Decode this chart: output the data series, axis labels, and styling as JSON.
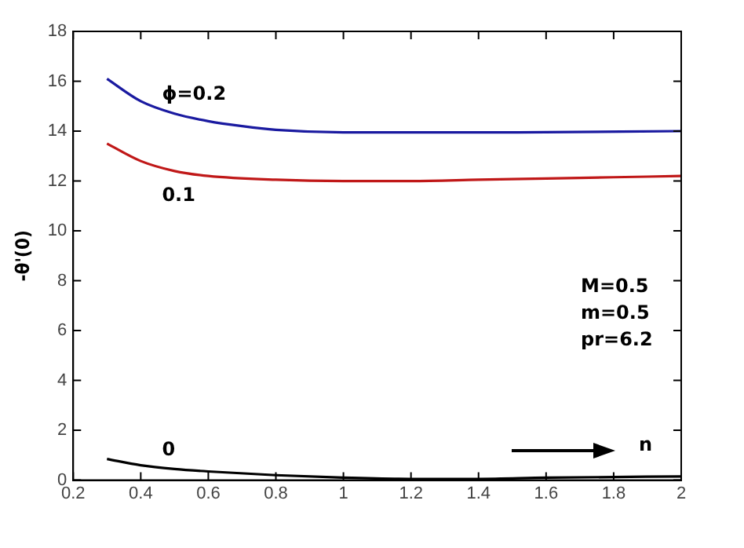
{
  "chart_data": {
    "type": "line",
    "ylabel": "-θ'(0)",
    "xlim": [
      0.2,
      2
    ],
    "xticks": [
      0.2,
      0.4,
      0.6,
      0.8,
      1,
      1.2,
      1.4,
      1.6,
      1.8,
      2
    ],
    "ylim": [
      0,
      18
    ],
    "yticks": [
      0,
      2,
      4,
      6,
      8,
      10,
      12,
      14,
      16,
      18
    ],
    "grid": false,
    "legend": false,
    "marker": "none",
    "line_style": "solid",
    "series": [
      {
        "name": "ϕ=0.2",
        "color": "#1a1aa0",
        "x": [
          0.3,
          0.4,
          0.5,
          0.6,
          0.7,
          0.8,
          1.0,
          1.2,
          1.5,
          2.0
        ],
        "values": [
          16.1,
          15.2,
          14.7,
          14.4,
          14.2,
          14.05,
          13.95,
          13.95,
          13.95,
          14.0
        ]
      },
      {
        "name": "0.1",
        "color": "#c01818",
        "x": [
          0.3,
          0.4,
          0.5,
          0.6,
          0.8,
          1.0,
          1.2,
          1.4,
          1.6,
          1.8,
          2.0
        ],
        "values": [
          13.5,
          12.8,
          12.4,
          12.2,
          12.05,
          12.0,
          12.0,
          12.05,
          12.1,
          12.15,
          12.2
        ]
      },
      {
        "name": "0",
        "color": "#000000",
        "x": [
          0.3,
          0.4,
          0.5,
          0.6,
          0.8,
          1.0,
          1.2,
          1.4,
          1.6,
          2.0
        ],
        "values": [
          0.85,
          0.6,
          0.45,
          0.35,
          0.2,
          0.1,
          0.05,
          0.05,
          0.1,
          0.15
        ]
      }
    ],
    "annotations": [
      "M=0.5",
      "m=0.5",
      "pr=6.2",
      "n"
    ]
  }
}
